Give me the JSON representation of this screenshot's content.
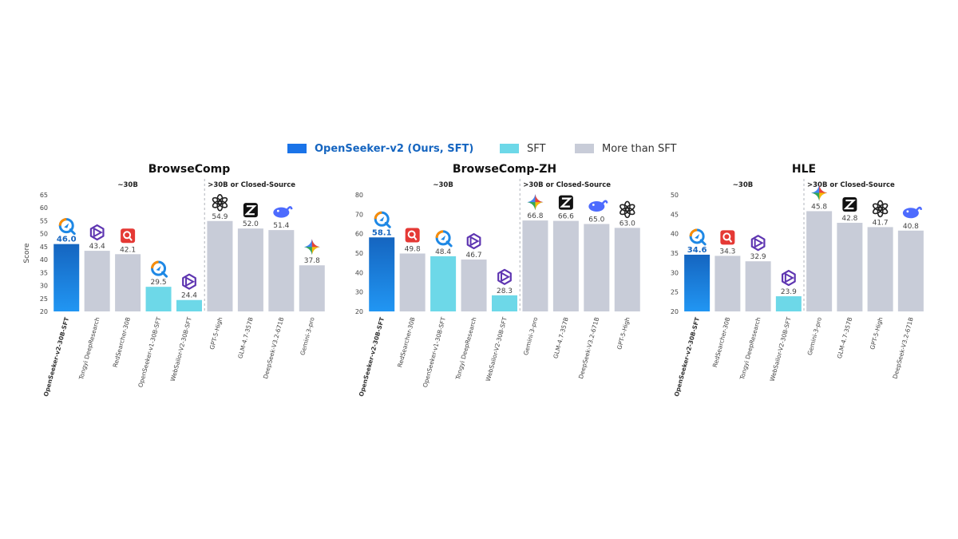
{
  "legend": [
    {
      "label": "OpenSeeker-v2 (Ours, SFT)",
      "color": "#1a73e8",
      "kind": "ours"
    },
    {
      "label": "SFT",
      "color": "#6dd8e8",
      "kind": "sft"
    },
    {
      "label": "More than SFT",
      "color": "#c8ccd8",
      "kind": "more"
    }
  ],
  "colors": {
    "ours_top": "#1565c0",
    "ours_bottom": "#2196f3",
    "sft": "#6dd8e8",
    "more": "#c8ccd8",
    "ours_text": "#1565c0"
  },
  "chart_data": [
    {
      "type": "bar",
      "title": "BrowseComp",
      "ylabel": "Score",
      "ylim": [
        20,
        65
      ],
      "yticks": [
        20,
        25,
        30,
        35,
        40,
        45,
        50,
        55,
        60,
        65
      ],
      "groups": [
        "~30B",
        ">30B or Closed-Source"
      ],
      "split_after": 5,
      "categories": [
        "OpenSeeker-v2-30B-SFT",
        "Tongyi DeepResearch",
        "RedSearcher-30B",
        "OpenSeeker-v1-30B-SFT",
        "WebSailor-V2-30B-SFT",
        "GPT-5-High",
        "GLM-4.7-357B",
        "DeepSeek-V3.2-671B",
        "Gemini-3-pro"
      ],
      "values": [
        46.0,
        43.4,
        42.1,
        29.5,
        24.4,
        54.9,
        52.0,
        51.4,
        37.8
      ],
      "value_labels": [
        "46.0",
        "43.4",
        "42.1",
        "29.5",
        "24.4",
        "54.9",
        "52.0",
        "51.4",
        "37.8"
      ],
      "kinds": [
        "ours",
        "more",
        "more",
        "sft",
        "sft",
        "more",
        "more",
        "more",
        "more"
      ],
      "icons": [
        "openseeker-logo-icon",
        "tongyi-logo-icon",
        "redsearcher-logo-icon",
        "openseeker-logo-icon",
        "tongyi-logo-icon",
        "openai-logo-icon",
        "zhipu-logo-icon",
        "deepseek-logo-icon",
        "gemini-logo-icon"
      ]
    },
    {
      "type": "bar",
      "title": "BrowseComp-ZH",
      "ylim": [
        20,
        80
      ],
      "yticks": [
        20,
        30,
        40,
        50,
        60,
        70,
        80
      ],
      "groups": [
        "~30B",
        ">30B or Closed-Source"
      ],
      "split_after": 5,
      "categories": [
        "OpenSeeker-v2-30B-SFT",
        "RedSearcher-30B",
        "OpenSeeker-v1-30B-SFT",
        "Tongyi DeepResearch",
        "WebSailor-V2-30B-SFT",
        "Gemini-3-pro",
        "GLM-4.7-357B",
        "DeepSeek-V3.2-671B",
        "GPT-5-High"
      ],
      "values": [
        58.1,
        49.8,
        48.4,
        46.7,
        28.3,
        66.8,
        66.6,
        65.0,
        63.0
      ],
      "value_labels": [
        "58.1",
        "49.8",
        "48.4",
        "46.7",
        "28.3",
        "66.8",
        "66.6",
        "65.0",
        "63.0"
      ],
      "kinds": [
        "ours",
        "more",
        "sft",
        "more",
        "sft",
        "more",
        "more",
        "more",
        "more"
      ],
      "icons": [
        "openseeker-logo-icon",
        "redsearcher-logo-icon",
        "openseeker-logo-icon",
        "tongyi-logo-icon",
        "tongyi-logo-icon",
        "gemini-logo-icon",
        "zhipu-logo-icon",
        "deepseek-logo-icon",
        "openai-logo-icon"
      ]
    },
    {
      "type": "bar",
      "title": "HLE",
      "ylim": [
        20,
        50
      ],
      "yticks": [
        20,
        25,
        30,
        35,
        40,
        45,
        50
      ],
      "groups": [
        "~30B",
        ">30B or Closed-Source"
      ],
      "split_after": 4,
      "categories": [
        "OpenSeeker-v2-30B-SFT",
        "RedSearcher-30B",
        "Tongyi DeepResearch",
        "WebSailor-V2-30B-SFT",
        "Gemini-3-pro",
        "GLM-4.7-357B",
        "GPT-5-High",
        "DeepSeek-V3.2-671B"
      ],
      "values": [
        34.6,
        34.3,
        32.9,
        23.9,
        45.8,
        42.8,
        41.7,
        40.8
      ],
      "value_labels": [
        "34.6",
        "34.3",
        "32.9",
        "23.9",
        "45.8",
        "42.8",
        "41.7",
        "40.8"
      ],
      "kinds": [
        "ours",
        "more",
        "more",
        "sft",
        "more",
        "more",
        "more",
        "more"
      ],
      "icons": [
        "openseeker-logo-icon",
        "redsearcher-logo-icon",
        "tongyi-logo-icon",
        "tongyi-logo-icon",
        "gemini-logo-icon",
        "zhipu-logo-icon",
        "openai-logo-icon",
        "deepseek-logo-icon"
      ]
    }
  ]
}
